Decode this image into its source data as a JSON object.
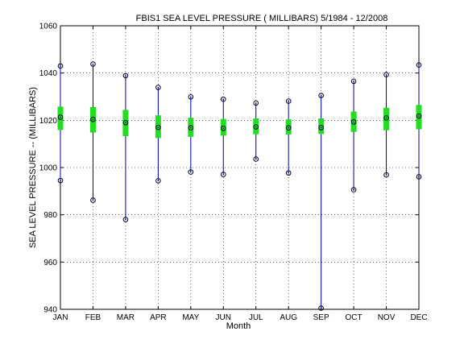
{
  "chart_data": {
    "type": "boxplot",
    "title": "FBIS1  SEA LEVEL PRESSURE ( MILLIBARS) 5/1984 - 12/2008",
    "xlabel": "Month",
    "ylabel": "SEA LEVEL PRESSURE -- (MILLIBARS)",
    "ylim": [
      940,
      1060
    ],
    "yticks": [
      940,
      960,
      980,
      1000,
      1020,
      1040,
      1060
    ],
    "grid": true,
    "categories": [
      "JAN",
      "FEB",
      "MAR",
      "APR",
      "MAY",
      "JUN",
      "JUL",
      "AUG",
      "SEP",
      "OCT",
      "NOV",
      "DEC"
    ],
    "min": [
      994.5,
      986.2,
      978.0,
      994.4,
      998.1,
      997.1,
      1003.6,
      997.7,
      940.5,
      990.6,
      996.9,
      996.1
    ],
    "max": [
      1043.0,
      1043.8,
      1038.9,
      1033.9,
      1029.9,
      1028.9,
      1027.3,
      1028.1,
      1030.5,
      1036.5,
      1039.3,
      1043.4
    ],
    "q1": [
      1015.9,
      1014.8,
      1013.3,
      1012.5,
      1013.0,
      1013.5,
      1014.1,
      1014.0,
      1014.2,
      1015.1,
      1015.8,
      1016.2
    ],
    "q3": [
      1025.8,
      1025.6,
      1024.4,
      1022.1,
      1021.1,
      1020.6,
      1020.8,
      1020.4,
      1020.8,
      1023.7,
      1025.3,
      1026.5
    ],
    "mean": [
      1021.3,
      1020.4,
      1019.0,
      1017.0,
      1016.8,
      1016.6,
      1017.2,
      1016.8,
      1016.9,
      1019.3,
      1021.0,
      1021.8
    ],
    "colors": {
      "whisker": "#0000aa",
      "box": "#22dd22",
      "marker": "#000033",
      "grid": "#000000",
      "axis": "#000000"
    }
  }
}
